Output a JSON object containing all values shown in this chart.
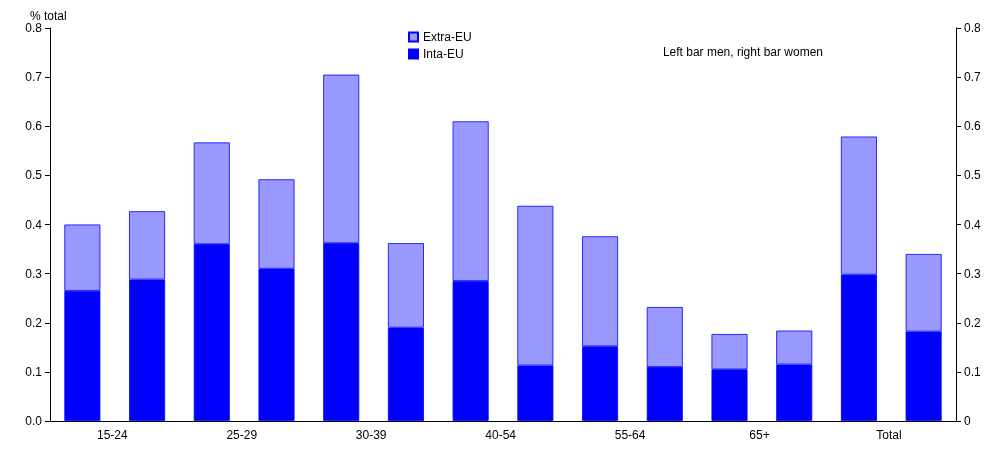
{
  "chart_data": {
    "type": "bar",
    "stacked": true,
    "ylabel": "% total",
    "annotations": [
      "Left bar men, right bar women"
    ],
    "categories": [
      "15-24",
      null,
      "25-29",
      null,
      "30-39",
      null,
      "40-54",
      null,
      "55-64",
      null,
      "65+",
      null,
      "Total",
      null
    ],
    "series": [
      {
        "name": "Inta-EU",
        "color": "#0000ff",
        "values": [
          0.265,
          0.288,
          0.36,
          0.31,
          0.362,
          0.19,
          0.285,
          0.113,
          0.152,
          0.11,
          0.105,
          0.115,
          0.298,
          0.182
        ]
      },
      {
        "name": "Extra-EU",
        "color": "#9999ff",
        "values": [
          0.135,
          0.139,
          0.207,
          0.182,
          0.343,
          0.172,
          0.325,
          0.325,
          0.224,
          0.122,
          0.072,
          0.069,
          0.281,
          0.158
        ]
      }
    ],
    "ylim": [
      0,
      0.8
    ],
    "yticks": [
      {
        "value": 0,
        "label": "0.0"
      },
      0.1,
      0.2,
      0.3,
      0.4,
      0.5,
      0.6,
      0.7,
      0.8
    ],
    "y2lim": [
      0,
      0.8
    ],
    "y2ticks": [
      0,
      0.1,
      0.2,
      0.3,
      0.4,
      0.5,
      0.6,
      0.7,
      0.8
    ],
    "grid": false,
    "legend": "top"
  }
}
